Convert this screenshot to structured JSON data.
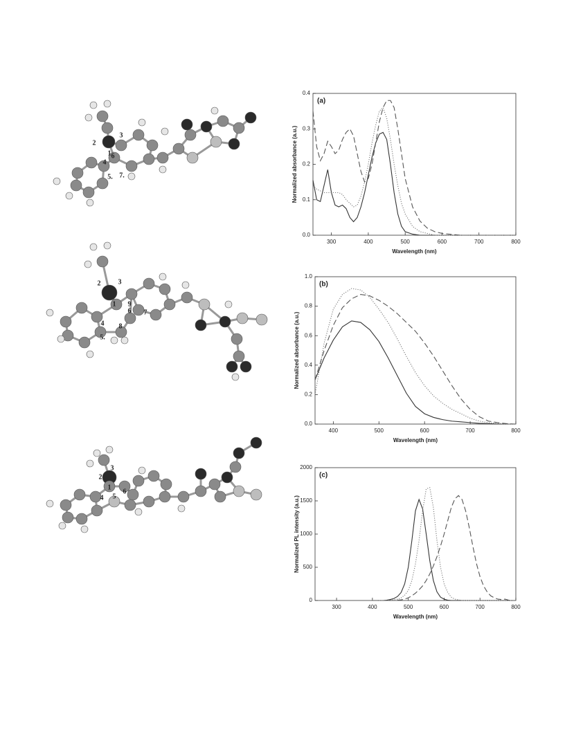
{
  "chart_data": [
    {
      "type": "line",
      "title": "(a)",
      "x_label": "Wavelength (nm)",
      "y_label": "Normalized absorbance (a.u.)",
      "x": [
        250,
        260,
        270,
        280,
        290,
        300,
        310,
        320,
        330,
        340,
        350,
        360,
        370,
        380,
        390,
        400,
        410,
        420,
        430,
        440,
        450,
        460,
        470,
        480,
        490,
        500,
        520,
        540,
        560,
        580,
        600,
        650,
        700,
        800
      ],
      "series": [
        {
          "color": "#333333",
          "dash": "solid",
          "values": [
            0.155,
            0.1,
            0.095,
            0.14,
            0.185,
            0.12,
            0.085,
            0.08,
            0.085,
            0.075,
            0.05,
            0.038,
            0.05,
            0.08,
            0.12,
            0.17,
            0.22,
            0.26,
            0.285,
            0.29,
            0.27,
            0.2,
            0.12,
            0.06,
            0.025,
            0.01,
            0.003,
            0,
            0,
            0,
            0,
            0,
            0,
            0
          ]
        },
        {
          "color": "#777777",
          "dash": "dotted",
          "values": [
            0.14,
            0.13,
            0.125,
            0.12,
            0.12,
            0.12,
            0.12,
            0.12,
            0.115,
            0.1,
            0.09,
            0.08,
            0.085,
            0.11,
            0.15,
            0.2,
            0.26,
            0.31,
            0.35,
            0.36,
            0.33,
            0.27,
            0.2,
            0.14,
            0.09,
            0.06,
            0.025,
            0.01,
            0.005,
            0,
            0,
            0,
            0,
            0
          ]
        },
        {
          "color": "#555555",
          "dash": "dashed",
          "values": [
            0.35,
            0.25,
            0.21,
            0.23,
            0.265,
            0.25,
            0.23,
            0.24,
            0.27,
            0.29,
            0.3,
            0.28,
            0.23,
            0.18,
            0.15,
            0.16,
            0.2,
            0.26,
            0.32,
            0.36,
            0.38,
            0.38,
            0.36,
            0.3,
            0.23,
            0.16,
            0.08,
            0.04,
            0.02,
            0.01,
            0.005,
            0,
            0,
            0
          ]
        }
      ],
      "xlim": [
        250,
        800
      ],
      "xticks": [
        300,
        400,
        500,
        600,
        700,
        800
      ],
      "ylim": [
        0,
        0.4
      ],
      "yticks": [
        {
          "value": 0,
          "label": "0.0"
        },
        0.1,
        0.2,
        0.3,
        0.4
      ]
    },
    {
      "type": "line",
      "title": "(b)",
      "x_label": "Wavelength (nm)",
      "y_label": "Normalized absorbance (a.u.)",
      "x": [
        360,
        380,
        400,
        420,
        440,
        460,
        480,
        500,
        520,
        540,
        560,
        580,
        600,
        620,
        640,
        660,
        680,
        700,
        720,
        740,
        760,
        780,
        800
      ],
      "series": [
        {
          "color": "#333333",
          "dash": "solid",
          "values": [
            0.3,
            0.45,
            0.57,
            0.66,
            0.7,
            0.69,
            0.64,
            0.56,
            0.45,
            0.33,
            0.21,
            0.12,
            0.07,
            0.045,
            0.03,
            0.02,
            0.015,
            0.01,
            0.005,
            0.003,
            0,
            0,
            0
          ]
        },
        {
          "color": "#777777",
          "dash": "dotted",
          "values": [
            0.2,
            0.55,
            0.78,
            0.88,
            0.92,
            0.91,
            0.86,
            0.78,
            0.69,
            0.58,
            0.46,
            0.35,
            0.26,
            0.19,
            0.14,
            0.1,
            0.07,
            0.04,
            0.02,
            0.01,
            0.005,
            0,
            0
          ]
        },
        {
          "color": "#555555",
          "dash": "dashed",
          "values": [
            0.3,
            0.5,
            0.67,
            0.79,
            0.85,
            0.88,
            0.87,
            0.84,
            0.8,
            0.75,
            0.69,
            0.63,
            0.55,
            0.46,
            0.36,
            0.26,
            0.17,
            0.1,
            0.05,
            0.02,
            0.01,
            0.003,
            0
          ]
        }
      ],
      "xlim": [
        360,
        800
      ],
      "xticks": [
        400,
        500,
        600,
        700,
        800
      ],
      "ylim": [
        0,
        1
      ],
      "yticks": [
        {
          "value": 0,
          "label": "0.0"
        },
        0.2,
        0.4,
        0.6,
        0.8,
        {
          "value": 1,
          "label": "1.0"
        }
      ]
    },
    {
      "type": "line",
      "title": "(c)",
      "x_label": "Wavelength (nm)",
      "y_label": "Normalized PL intensity (a.u.)",
      "x": [
        400,
        410,
        420,
        430,
        440,
        450,
        460,
        470,
        480,
        490,
        500,
        510,
        520,
        530,
        540,
        550,
        560,
        570,
        580,
        590,
        600,
        610,
        620,
        630,
        640,
        650,
        660,
        670,
        680,
        690,
        700,
        710,
        720,
        730,
        740,
        750,
        760,
        770,
        780,
        790,
        800
      ],
      "series": [
        {
          "color": "#333333",
          "dash": "solid",
          "values": [
            0,
            0,
            0,
            0,
            5,
            15,
            30,
            60,
            120,
            250,
            500,
            900,
            1350,
            1520,
            1380,
            1000,
            600,
            300,
            130,
            50,
            20,
            5,
            0,
            0,
            0,
            0,
            0,
            0,
            0,
            0,
            0,
            0,
            0,
            0,
            0,
            0,
            0,
            0,
            0,
            0,
            0
          ]
        },
        {
          "color": "#777777",
          "dash": "dotted",
          "values": [
            0,
            0,
            0,
            0,
            0,
            5,
            10,
            20,
            40,
            80,
            150,
            300,
            550,
            900,
            1350,
            1680,
            1700,
            1400,
            900,
            500,
            250,
            120,
            50,
            20,
            10,
            0,
            0,
            0,
            0,
            0,
            0,
            0,
            0,
            0,
            0,
            0,
            0,
            0,
            0,
            0,
            0
          ]
        },
        {
          "color": "#555555",
          "dash": "dashed",
          "values": [
            0,
            0,
            0,
            0,
            0,
            0,
            0,
            5,
            10,
            20,
            40,
            70,
            110,
            160,
            220,
            300,
            400,
            520,
            660,
            820,
            1000,
            1200,
            1400,
            1530,
            1580,
            1520,
            1350,
            1100,
            820,
            560,
            360,
            220,
            130,
            70,
            40,
            20,
            15,
            20,
            5,
            0,
            0
          ]
        }
      ],
      "xlim": [
        240,
        800
      ],
      "xticks": [
        300,
        400,
        500,
        600,
        700,
        800
      ],
      "ylim": [
        0,
        2000
      ],
      "yticks": [
        0,
        500,
        1000,
        1500,
        2000
      ]
    }
  ],
  "molecules": [
    {
      "labels": [
        "2",
        "3",
        "1",
        "4",
        "6",
        "5.",
        "7."
      ]
    },
    {
      "labels": [
        "2",
        "3",
        "1",
        "9",
        "6",
        "4",
        "7",
        "8",
        "5."
      ]
    },
    {
      "labels": [
        "3",
        "2",
        "1",
        "4",
        "5",
        "6"
      ]
    }
  ]
}
